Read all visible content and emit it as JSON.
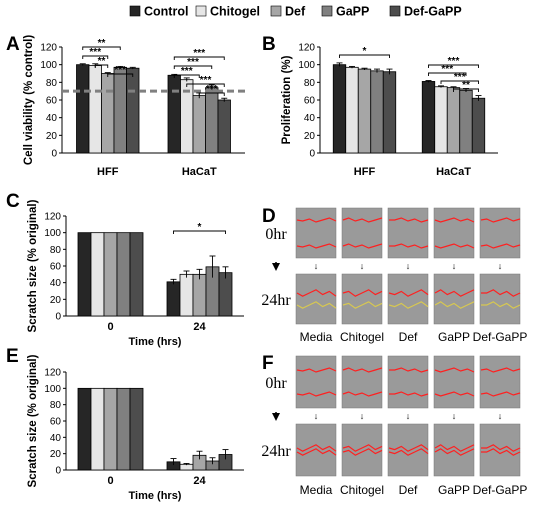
{
  "colors": {
    "Control": "#262626",
    "Chitogel": "#e6e6e6",
    "Def": "#a6a6a6",
    "GaPP": "#808080",
    "Def-GaPP": "#4d4d4d",
    "dashed_line": "#808080",
    "scratch_bg": "#9a9a9a",
    "scratch_line": "#ff2020",
    "scratch_line_alt": "#d8c850"
  },
  "legend": [
    "Control",
    "Chitogel",
    "Def",
    "GaPP",
    "Def-GaPP"
  ],
  "panel_letters": [
    "A",
    "B",
    "C",
    "D",
    "E",
    "F"
  ],
  "chart_data": [
    {
      "panel": "A",
      "type": "bar",
      "categories": [
        "HFF",
        "HaCaT"
      ],
      "series": [
        {
          "name": "Control",
          "values": [
            100,
            88
          ],
          "errors": [
            1,
            1
          ]
        },
        {
          "name": "Chitogel",
          "values": [
            99,
            83
          ],
          "errors": [
            2,
            2
          ]
        },
        {
          "name": "Def",
          "values": [
            90,
            65
          ],
          "errors": [
            1,
            3
          ]
        },
        {
          "name": "GaPP",
          "values": [
            97,
            74
          ],
          "errors": [
            1,
            3
          ]
        },
        {
          "name": "Def-GaPP",
          "values": [
            96,
            60
          ],
          "errors": [
            1,
            2
          ]
        }
      ],
      "ylabel": "Cell viability (% control)",
      "ylim": [
        0,
        120
      ],
      "yticks": [
        "0",
        "20",
        "40",
        "60",
        "80",
        "100",
        "120"
      ],
      "reference_line": 70,
      "significance": [
        {
          "group": 0,
          "from": 0,
          "to": 3,
          "label": "**"
        },
        {
          "group": 0,
          "from": 0,
          "to": 2,
          "label": "***"
        },
        {
          "group": 0,
          "from": 1,
          "to": 2,
          "label": "**"
        },
        {
          "group": 0,
          "from": 2,
          "to": 4,
          "label": "***"
        },
        {
          "group": 1,
          "from": 0,
          "to": 4,
          "label": "***"
        },
        {
          "group": 1,
          "from": 0,
          "to": 3,
          "label": "***"
        },
        {
          "group": 1,
          "from": 0,
          "to": 2,
          "label": "***"
        },
        {
          "group": 1,
          "from": 1,
          "to": 4,
          "label": "***"
        },
        {
          "group": 1,
          "from": 2,
          "to": 4,
          "label": "***"
        }
      ]
    },
    {
      "panel": "B",
      "type": "bar",
      "categories": [
        "HFF",
        "HaCaT"
      ],
      "series": [
        {
          "name": "Control",
          "values": [
            100,
            81
          ],
          "errors": [
            2,
            1
          ]
        },
        {
          "name": "Chitogel",
          "values": [
            97,
            75
          ],
          "errors": [
            1,
            1
          ]
        },
        {
          "name": "Def",
          "values": [
            95,
            74
          ],
          "errors": [
            1,
            1
          ]
        },
        {
          "name": "GaPP",
          "values": [
            93,
            71
          ],
          "errors": [
            2,
            2
          ]
        },
        {
          "name": "Def-GaPP",
          "values": [
            92,
            62
          ],
          "errors": [
            3,
            3
          ]
        }
      ],
      "ylabel": "Proliferation (%)",
      "ylim": [
        0,
        120
      ],
      "yticks": [
        "0",
        "20",
        "40",
        "60",
        "80",
        "100",
        "120"
      ],
      "significance": [
        {
          "group": 0,
          "from": 0,
          "to": 4,
          "label": "*"
        },
        {
          "group": 1,
          "from": 0,
          "to": 4,
          "label": "***"
        },
        {
          "group": 1,
          "from": 0,
          "to": 3,
          "label": "***"
        },
        {
          "group": 1,
          "from": 1,
          "to": 4,
          "label": "***"
        },
        {
          "group": 1,
          "from": 2,
          "to": 4,
          "label": "**"
        }
      ]
    },
    {
      "panel": "C",
      "type": "bar",
      "categories": [
        "0",
        "24"
      ],
      "series": [
        {
          "name": "Control",
          "values": [
            100,
            41
          ],
          "errors": [
            0,
            3
          ]
        },
        {
          "name": "Chitogel",
          "values": [
            100,
            50
          ],
          "errors": [
            0,
            4
          ]
        },
        {
          "name": "Def",
          "values": [
            100,
            50
          ],
          "errors": [
            0,
            6
          ]
        },
        {
          "name": "GaPP",
          "values": [
            100,
            59
          ],
          "errors": [
            0,
            13
          ]
        },
        {
          "name": "Def-GaPP",
          "values": [
            100,
            52
          ],
          "errors": [
            0,
            7
          ]
        }
      ],
      "xlabel": "Time (hrs)",
      "ylabel": "Scratch size (% original)",
      "ylim": [
        0,
        120
      ],
      "yticks": [
        "0",
        "20",
        "40",
        "60",
        "80",
        "100",
        "120"
      ],
      "significance": [
        {
          "group": 1,
          "from": 0,
          "to": 4,
          "label": "*"
        }
      ]
    },
    {
      "panel": "E",
      "type": "bar",
      "categories": [
        "0",
        "24"
      ],
      "series": [
        {
          "name": "Control",
          "values": [
            100,
            10
          ],
          "errors": [
            0,
            4
          ]
        },
        {
          "name": "Chitogel",
          "values": [
            100,
            7
          ],
          "errors": [
            0,
            1
          ]
        },
        {
          "name": "Def",
          "values": [
            100,
            18
          ],
          "errors": [
            0,
            5
          ]
        },
        {
          "name": "GaPP",
          "values": [
            100,
            11
          ],
          "errors": [
            0,
            4
          ]
        },
        {
          "name": "Def-GaPP",
          "values": [
            100,
            19
          ],
          "errors": [
            0,
            6
          ]
        }
      ],
      "xlabel": "Time (hrs)",
      "ylabel": "Scratch size (% original)",
      "ylim": [
        0,
        120
      ],
      "yticks": [
        "0",
        "20",
        "40",
        "60",
        "80",
        "100",
        "120"
      ],
      "significance": []
    }
  ],
  "micrographs": {
    "D": {
      "rows": [
        "0hr",
        "24hr"
      ],
      "columns": [
        "Media",
        "Chitogel",
        "Def",
        "GaPP",
        "Def-GaPP"
      ]
    },
    "F": {
      "rows": [
        "0hr",
        "24hr"
      ],
      "columns": [
        "Media",
        "Chitogel",
        "Def",
        "GaPP",
        "Def-GaPP"
      ]
    }
  }
}
